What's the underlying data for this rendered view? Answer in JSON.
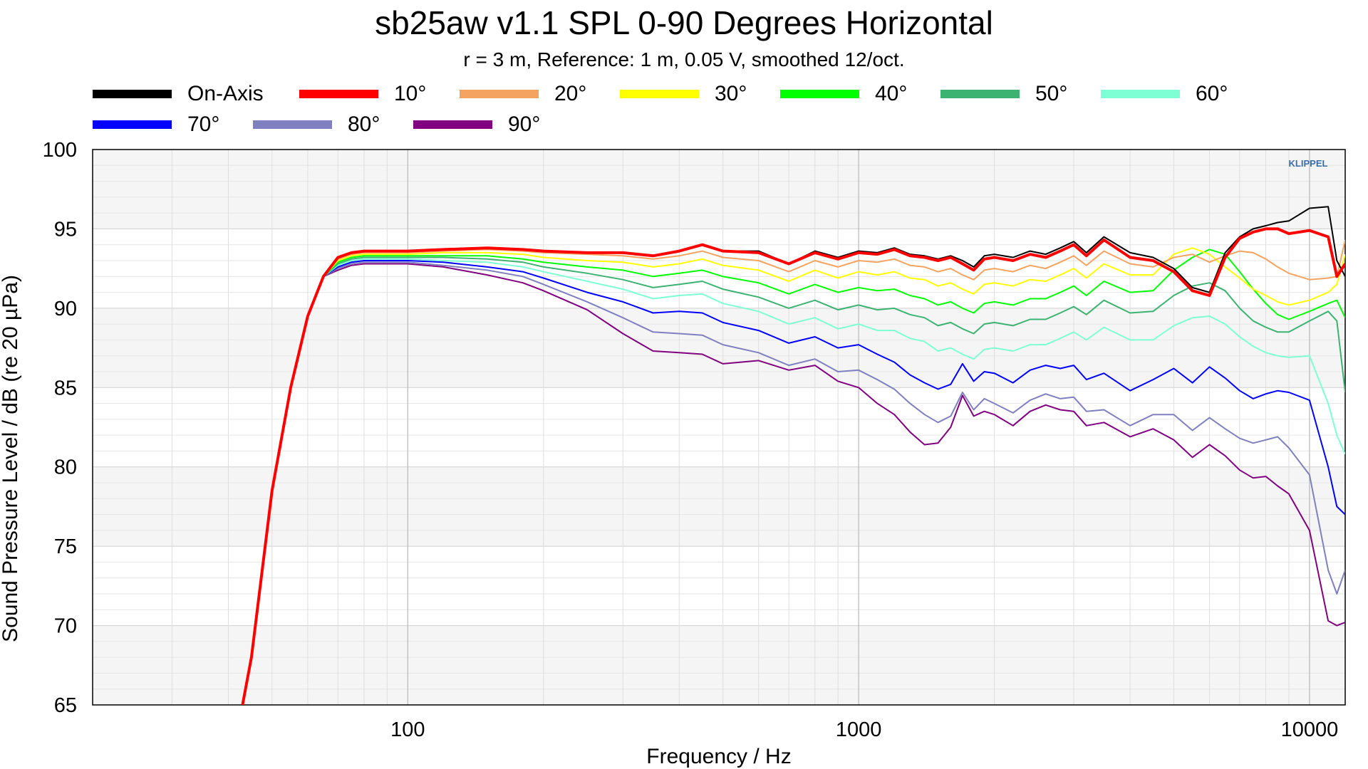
{
  "chart_data": {
    "type": "line",
    "title": "sb25aw v1.1 SPL 0-90 Degrees Horizontal",
    "subtitle": "r = 3 m,  Reference: 1 m, 0.05 V, smoothed 12/oct.",
    "xlabel": "Frequency / Hz",
    "ylabel": "Sound Pressure Level / dB (re 20 µPa)",
    "xscale": "log",
    "xlim": [
      20,
      12000
    ],
    "ylim": [
      65,
      100
    ],
    "xticks": [
      {
        "value": 100,
        "label": "100"
      },
      {
        "value": 1000,
        "label": "1000"
      },
      {
        "value": 10000,
        "label": "10000"
      }
    ],
    "yticks": [
      {
        "value": 65,
        "label": "65"
      },
      {
        "value": 70,
        "label": "70"
      },
      {
        "value": 75,
        "label": "75"
      },
      {
        "value": 80,
        "label": "80"
      },
      {
        "value": 85,
        "label": "85"
      },
      {
        "value": 90,
        "label": "90"
      },
      {
        "value": 95,
        "label": "95"
      },
      {
        "value": 100,
        "label": "100"
      }
    ],
    "grid": true,
    "legend_position": "top",
    "brand_mark": "KLIPPEL",
    "x": [
      43,
      45,
      50,
      55,
      60,
      65,
      70,
      75,
      80,
      90,
      100,
      120,
      150,
      180,
      200,
      250,
      300,
      350,
      400,
      450,
      500,
      600,
      700,
      800,
      900,
      1000,
      1100,
      1200,
      1300,
      1400,
      1500,
      1600,
      1700,
      1800,
      1900,
      2000,
      2200,
      2400,
      2600,
      2800,
      3000,
      3200,
      3500,
      4000,
      4500,
      5000,
      5500,
      6000,
      6500,
      7000,
      7500,
      8000,
      8500,
      9000,
      10000,
      11000,
      11500,
      12000
    ],
    "series": [
      {
        "name": "On-Axis",
        "color": "#000000",
        "width": 2,
        "values": [
          65,
          68,
          78.5,
          85,
          89.5,
          92,
          93.2,
          93.5,
          93.6,
          93.6,
          93.6,
          93.7,
          93.8,
          93.7,
          93.6,
          93.5,
          93.5,
          93.3,
          93.6,
          94,
          93.6,
          93.6,
          92.8,
          93.6,
          93.2,
          93.6,
          93.5,
          93.8,
          93.4,
          93.3,
          93.1,
          93.3,
          93,
          92.6,
          93.3,
          93.4,
          93.2,
          93.6,
          93.4,
          93.8,
          94.2,
          93.5,
          94.5,
          93.5,
          93.2,
          92.5,
          91.3,
          91,
          93.5,
          94.5,
          95,
          95.2,
          95.4,
          95.5,
          96.3,
          96.4,
          93,
          92
        ]
      },
      {
        "name": "10°",
        "color": "#ff0000",
        "width": 4,
        "values": [
          65,
          68,
          78.5,
          85,
          89.5,
          92,
          93.2,
          93.5,
          93.6,
          93.6,
          93.6,
          93.7,
          93.8,
          93.7,
          93.6,
          93.5,
          93.5,
          93.3,
          93.6,
          94,
          93.6,
          93.5,
          92.8,
          93.5,
          93.1,
          93.5,
          93.4,
          93.7,
          93.3,
          93.2,
          93,
          93.2,
          92.8,
          92.4,
          93.1,
          93.2,
          93,
          93.4,
          93.2,
          93.6,
          94,
          93.3,
          94.3,
          93.2,
          93,
          92.3,
          91.1,
          90.8,
          93.2,
          94.4,
          94.8,
          95,
          95,
          94.7,
          94.9,
          94.5,
          92,
          92.8
        ]
      },
      {
        "name": "20°",
        "color": "#f4a460",
        "width": 2,
        "values": [
          65,
          68,
          78.5,
          85,
          89.5,
          92,
          93.1,
          93.4,
          93.5,
          93.5,
          93.5,
          93.6,
          93.7,
          93.6,
          93.5,
          93.4,
          93.3,
          93.1,
          93.3,
          93.6,
          93.2,
          93,
          92.3,
          93,
          92.6,
          93,
          92.9,
          93.1,
          92.7,
          92.6,
          92.3,
          92.5,
          92.1,
          91.8,
          92.4,
          92.5,
          92.3,
          92.7,
          92.5,
          92.9,
          93.3,
          92.7,
          93.6,
          92.8,
          92.6,
          93.2,
          93.4,
          92.9,
          93.3,
          93.6,
          93.5,
          93.1,
          92.6,
          92.2,
          91.8,
          91.9,
          92,
          94.3
        ]
      },
      {
        "name": "30°",
        "color": "#ffff00",
        "width": 2,
        "values": [
          65,
          68,
          78.5,
          85,
          89.5,
          92,
          93,
          93.3,
          93.4,
          93.4,
          93.4,
          93.5,
          93.5,
          93.4,
          93.2,
          93,
          92.9,
          92.6,
          92.8,
          93.1,
          92.7,
          92.4,
          91.7,
          92.4,
          91.9,
          92.3,
          92.1,
          92.3,
          91.9,
          91.8,
          91.4,
          91.6,
          91.2,
          90.9,
          91.5,
          91.6,
          91.4,
          91.8,
          91.7,
          92.1,
          92.5,
          91.9,
          92.8,
          92.1,
          92.1,
          93.4,
          93.8,
          93.4,
          92.6,
          91.9,
          91.2,
          90.8,
          90.4,
          90.2,
          90.5,
          91,
          91.5,
          93.4
        ]
      },
      {
        "name": "40°",
        "color": "#00ff00",
        "width": 2,
        "values": [
          65,
          68,
          78.5,
          85,
          89.5,
          92,
          92.9,
          93.2,
          93.3,
          93.3,
          93.3,
          93.3,
          93.3,
          93.1,
          92.9,
          92.6,
          92.4,
          92,
          92.2,
          92.4,
          92,
          91.6,
          90.9,
          91.5,
          91,
          91.3,
          91.1,
          91.2,
          90.8,
          90.6,
          90.2,
          90.4,
          90,
          89.7,
          90.3,
          90.4,
          90.2,
          90.6,
          90.6,
          91,
          91.4,
          90.8,
          91.7,
          91,
          91.1,
          92.4,
          93.2,
          93.7,
          93.4,
          92.3,
          91.2,
          90.3,
          89.6,
          89.3,
          89.8,
          90.3,
          90.5,
          89.4
        ]
      },
      {
        "name": "50°",
        "color": "#3cb371",
        "width": 2,
        "values": [
          65,
          68,
          78.5,
          85,
          89.5,
          92,
          92.8,
          93.1,
          93.2,
          93.2,
          93.2,
          93.2,
          93.1,
          92.9,
          92.6,
          92.2,
          91.8,
          91.3,
          91.5,
          91.7,
          91.2,
          90.7,
          90,
          90.5,
          89.9,
          90.2,
          89.9,
          90,
          89.6,
          89.4,
          88.9,
          89.1,
          88.7,
          88.4,
          89,
          89.1,
          88.9,
          89.3,
          89.3,
          89.7,
          90.1,
          89.6,
          90.5,
          89.7,
          89.8,
          90.8,
          91.4,
          91.6,
          91.1,
          90,
          89.2,
          88.8,
          88.5,
          88.5,
          89.2,
          89.8,
          89.2,
          84.7
        ]
      },
      {
        "name": "60°",
        "color": "#7fffd4",
        "width": 2,
        "values": [
          65,
          68,
          78.5,
          85,
          89.5,
          92,
          92.7,
          93,
          93.1,
          93.1,
          93.1,
          93,
          92.9,
          92.6,
          92.3,
          91.7,
          91.2,
          90.6,
          90.8,
          90.9,
          90.3,
          89.8,
          89,
          89.4,
          88.7,
          89,
          88.6,
          88.6,
          88.1,
          87.9,
          87.3,
          87.5,
          87.1,
          86.8,
          87.4,
          87.5,
          87.3,
          87.7,
          87.7,
          88.1,
          88.5,
          88,
          88.8,
          88,
          88,
          88.9,
          89.4,
          89.5,
          89,
          88.2,
          87.6,
          87.2,
          87,
          86.9,
          87,
          84,
          82,
          80.8
        ]
      },
      {
        "name": "70°",
        "color": "#0000ff",
        "width": 2,
        "values": [
          65,
          68,
          78.5,
          85,
          89.5,
          92,
          92.6,
          92.9,
          93,
          93,
          93,
          92.9,
          92.6,
          92.3,
          91.9,
          91,
          90.4,
          89.7,
          89.8,
          89.7,
          89.1,
          88.6,
          87.8,
          88.2,
          87.5,
          87.7,
          87.1,
          86.6,
          85.8,
          85.3,
          84.9,
          85.2,
          86.5,
          85.4,
          86,
          85.9,
          85.3,
          86.1,
          86.4,
          86.2,
          86.4,
          85.5,
          85.9,
          84.8,
          85.5,
          86.2,
          85.3,
          86.3,
          85.6,
          84.8,
          84.3,
          84.6,
          84.8,
          84.7,
          84.2,
          80,
          77.5,
          77
        ]
      },
      {
        "name": "80°",
        "color": "#8080c0",
        "width": 2,
        "values": [
          65,
          68,
          78.5,
          85,
          89.5,
          92,
          92.5,
          92.8,
          92.9,
          92.9,
          92.9,
          92.7,
          92.4,
          92,
          91.5,
          90.4,
          89.4,
          88.5,
          88.4,
          88.3,
          87.7,
          87.2,
          86.4,
          86.8,
          86,
          86.1,
          85.5,
          84.9,
          84,
          83.3,
          82.8,
          83.2,
          84.7,
          83.6,
          84.3,
          84,
          83.4,
          84.2,
          84.6,
          84.3,
          84.4,
          83.5,
          83.6,
          82.6,
          83.3,
          83.3,
          82.3,
          83.1,
          82.4,
          81.8,
          81.5,
          81.7,
          81.9,
          81.2,
          79.5,
          73.5,
          72,
          73.5
        ]
      },
      {
        "name": "90°",
        "color": "#800080",
        "width": 2,
        "values": [
          65,
          68,
          78.5,
          85,
          89.5,
          92,
          92.4,
          92.7,
          92.8,
          92.8,
          92.8,
          92.6,
          92.1,
          91.6,
          91.1,
          89.9,
          88.4,
          87.3,
          87.2,
          87.1,
          86.5,
          86.7,
          86.1,
          86.4,
          85.4,
          85,
          84,
          83.3,
          82.2,
          81.4,
          81.5,
          82.5,
          84.5,
          83.2,
          83.5,
          83.3,
          82.6,
          83.5,
          83.9,
          83.6,
          83.5,
          82.6,
          82.8,
          81.9,
          82.4,
          81.7,
          80.6,
          81.4,
          80.7,
          79.8,
          79.3,
          79.4,
          78.8,
          78.3,
          76,
          70.3,
          70,
          70.2
        ]
      }
    ]
  }
}
